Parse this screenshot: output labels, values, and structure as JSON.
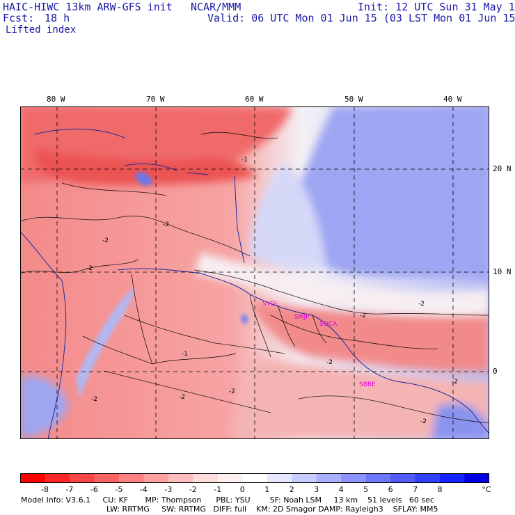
{
  "header": {
    "model_title": "HAIC-HIWC 13km ARW-GFS init",
    "org": "NCAR/MMM",
    "init": "Init: 12 UTC Sun 31 May 15",
    "fcst_label": "Fcst:",
    "fcst_value": "18 h",
    "valid": "Valid: 06 UTC Mon 01 Jun 15 (03 LST Mon 01 Jun 15)",
    "field_name": "Lifted index"
  },
  "map": {
    "lon_labels": [
      "80 W",
      "70 W",
      "60 W",
      "50 W",
      "40 W"
    ],
    "lat_labels": [
      "20 N",
      "10 N",
      "0"
    ],
    "contour_labels": [
      "-2",
      "-2",
      "-2",
      "-2",
      "-2",
      "-2",
      "-2",
      "-2",
      "-2",
      "-1",
      "-1",
      "-2",
      "-2"
    ],
    "stations": [
      "SYGI",
      "SMJP",
      "SOCA",
      "SBBE"
    ]
  },
  "colorbar": {
    "colors": [
      "#ff0000",
      "#ff2828",
      "#ff4646",
      "#ff6464",
      "#ff8282",
      "#ffa0a0",
      "#ffbebe",
      "#ffdcdc",
      "#fff0f0",
      "#ffffff",
      "#e6e8ff",
      "#c8ccff",
      "#aab0ff",
      "#8c94ff",
      "#6e78ff",
      "#505cff",
      "#3240ff",
      "#1424ff",
      "#0000e6"
    ],
    "labels": [
      "-8",
      "-7",
      "-6",
      "-5",
      "-4",
      "-3",
      "-2",
      "-1",
      "0",
      "1",
      "2",
      "3",
      "4",
      "5",
      "6",
      "7",
      "8"
    ],
    "unit": "°C"
  },
  "model_info": {
    "line1": "Model Info: V3.6.1     CU: KF       MP: Thompson      PBL: YSU        SF: Noah LSM     13 km    51 levels   60 sec",
    "line2": "LW: RRTMG     SW: RRTMG   DIFF: full    KM: 2D Smagor DAMP: Rayleigh3    SFLAY: MM5"
  }
}
